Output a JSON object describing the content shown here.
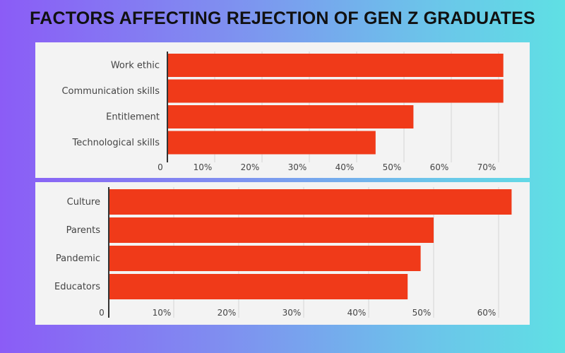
{
  "title": "FACTORS AFFECTING REJECTION OF GEN Z GRADUATES",
  "colors": {
    "bar": "#f03a19",
    "grid": "#d6d6d6",
    "axis": "#333333",
    "panel": "#f3f3f3"
  },
  "chart_data": [
    {
      "type": "bar",
      "orientation": "horizontal",
      "categories": [
        "Work ethic",
        "Communication skills",
        "Entitlement",
        "Technological skills"
      ],
      "values": [
        71,
        71,
        52,
        44
      ],
      "xticks": [
        "0",
        "10%",
        "20%",
        "30%",
        "40%",
        "50%",
        "60%",
        "70%"
      ],
      "xlim": [
        0,
        70
      ],
      "grid": true
    },
    {
      "type": "bar",
      "orientation": "horizontal",
      "categories": [
        "Culture",
        "Parents",
        "Pandemic",
        "Educators"
      ],
      "values": [
        62,
        50,
        48,
        46
      ],
      "xticks": [
        "0",
        "10%",
        "20%",
        "30%",
        "40%",
        "50%",
        "60%"
      ],
      "xlim": [
        0,
        60
      ],
      "grid": true
    }
  ]
}
